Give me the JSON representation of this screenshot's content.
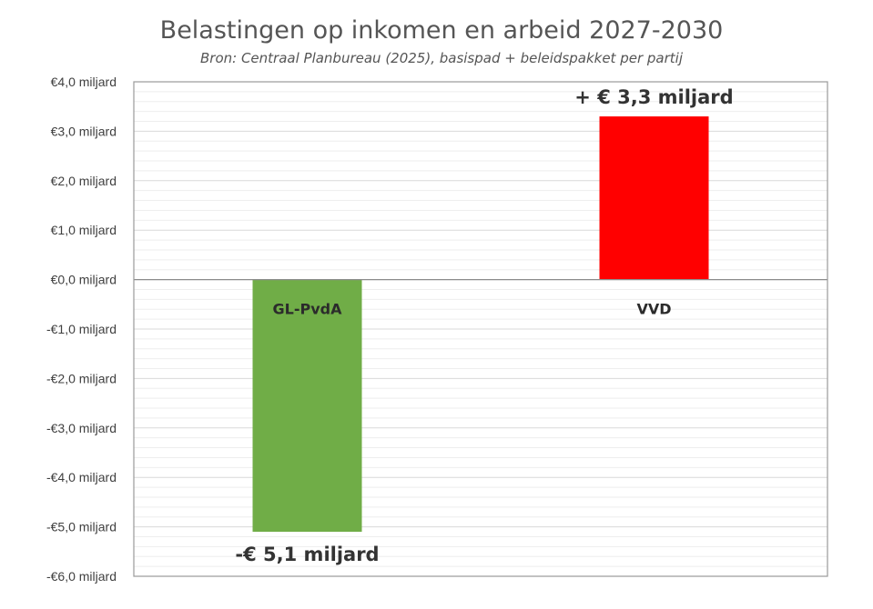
{
  "chart_data": {
    "type": "bar",
    "title": "Belastingen op inkomen en arbeid 2027-2030",
    "subtitle": "Bron: Centraal Planbureau (2025), basispad + beleidspakket per partij",
    "categories": [
      "GL-PvdA",
      "VVD"
    ],
    "values": [
      -5.1,
      3.3
    ],
    "colors": [
      "#70ad47",
      "#ff0000"
    ],
    "data_labels": [
      "-€ 5,1 miljard",
      "+ € 3,3 miljard"
    ],
    "ylim": [
      -6,
      4
    ],
    "yticks": [
      4,
      3,
      2,
      1,
      0,
      -1,
      -2,
      -3,
      -4,
      -5,
      -6
    ],
    "ytick_labels": [
      "€4,0 miljard",
      "€3,0 miljard",
      "€2,0 miljard",
      "€1,0 miljard",
      "€0,0 miljard",
      "-€1,0 miljard",
      "-€2,0 miljard",
      "-€3,0 miljard",
      "-€4,0 miljard",
      "-€5,0 miljard",
      "-€6,0 miljard"
    ],
    "minor_gridlines_per_unit": 5,
    "grid": true,
    "xlabel": "",
    "ylabel": ""
  }
}
